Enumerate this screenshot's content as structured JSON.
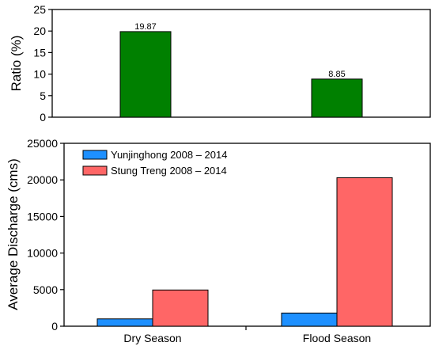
{
  "chart_data": [
    {
      "type": "bar",
      "categories": [
        "Dry Season",
        "Flood Season"
      ],
      "values": [
        19.87,
        8.85
      ],
      "data_labels": [
        "19.87",
        "8.85"
      ],
      "ylabel": "Ratio (%)",
      "xlabel": "",
      "ylim": [
        0,
        25
      ],
      "yticks": [
        0,
        5,
        10,
        15,
        20,
        25
      ],
      "color": "#008000",
      "grid": false
    },
    {
      "type": "bar",
      "categories": [
        "Dry Season",
        "Flood Season"
      ],
      "series": [
        {
          "name": "Yunjinghong 2008 – 2014",
          "values": [
            1000,
            1800
          ],
          "color": "#1E90FF"
        },
        {
          "name": "Stung Treng 2008 – 2014",
          "values": [
            4950,
            20300
          ],
          "color": "#FF6666"
        }
      ],
      "ylabel": "Average Discharge (cms)",
      "xlabel": "",
      "ylim": [
        0,
        25000
      ],
      "yticks": [
        0,
        5000,
        10000,
        15000,
        20000,
        25000
      ],
      "legend": "top-left",
      "grid": false
    }
  ]
}
